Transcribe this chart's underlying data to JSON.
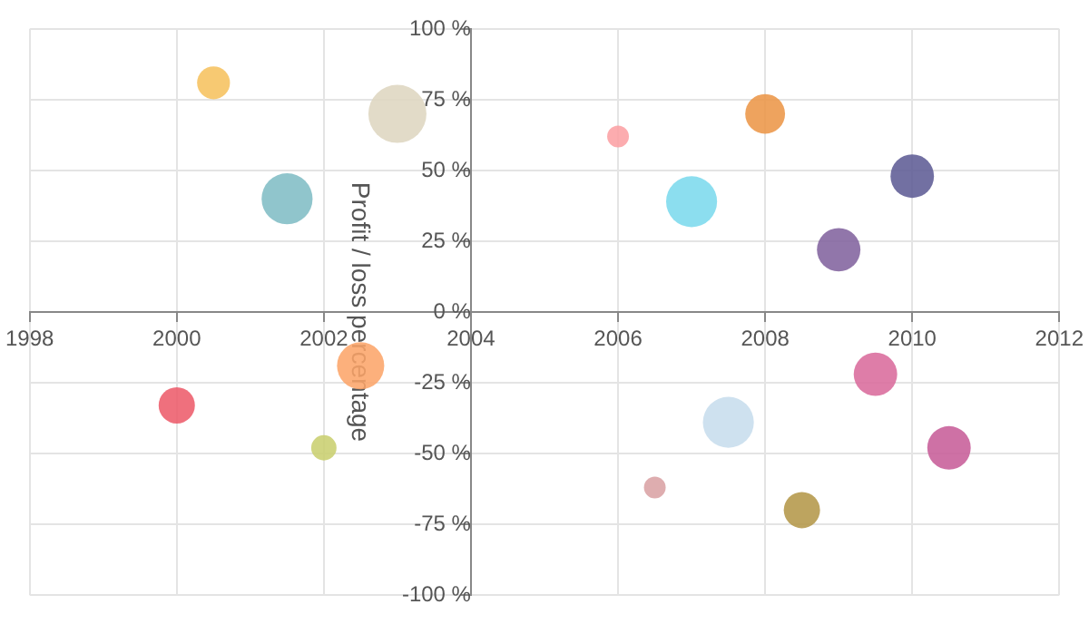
{
  "chart_data": {
    "type": "bubble",
    "ylabel": "Profit / loss percentage",
    "x": [
      2000.5,
      2003,
      2001.5,
      2000,
      2002.5,
      2002,
      2006,
      2008,
      2007,
      2010,
      2009,
      2009.5,
      2007.5,
      2010.5,
      2006.5,
      2008.5
    ],
    "values": [
      81,
      70,
      40,
      -33,
      -19,
      -48,
      62,
      70,
      39,
      48,
      22,
      -22,
      -39,
      -48,
      -62,
      -70
    ],
    "sizes": [
      0.32,
      1,
      0.77,
      0.39,
      0.66,
      0.19,
      0.14,
      0.47,
      0.77,
      0.56,
      0.56,
      0.56,
      0.77,
      0.56,
      0.14,
      0.39
    ],
    "colors": [
      "#f6c15c",
      "#ddd5bf",
      "#7fbcc4",
      "#ec5a69",
      "#fca468",
      "#c9cf6e",
      "#fb9fa3",
      "#eb9545",
      "#7ad9ec",
      "#5c5a94",
      "#80619d",
      "#d9699b",
      "#c6dcec",
      "#c75b97",
      "#d9a0a3",
      "#b39646"
    ],
    "xlim": [
      1998,
      2012
    ],
    "xticks": [
      1998,
      2000,
      2002,
      2004,
      2006,
      2008,
      2010,
      2012
    ],
    "ylim": [
      -100,
      100
    ],
    "yticks": [
      {
        "value": -100,
        "label": "-100 %"
      },
      {
        "value": -75,
        "label": "-75 %"
      },
      {
        "value": -50,
        "label": "-50 %"
      },
      {
        "value": -25,
        "label": "-25 %"
      },
      {
        "value": 0,
        "label": "0 %"
      },
      {
        "value": 25,
        "label": "25 %"
      },
      {
        "value": 50,
        "label": "50 %"
      },
      {
        "value": 75,
        "label": "75 %"
      },
      {
        "value": 100,
        "label": "100 %"
      }
    ],
    "grid": true,
    "legend": false
  }
}
